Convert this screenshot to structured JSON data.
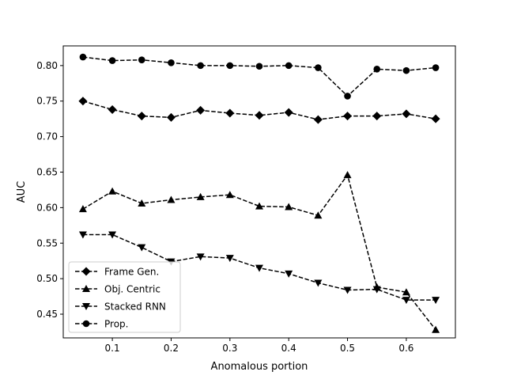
{
  "chart_data": {
    "type": "line",
    "title": "",
    "xlabel": "Anomalous portion",
    "ylabel": "AUC",
    "x": [
      0.05,
      0.1,
      0.15,
      0.2,
      0.25,
      0.3,
      0.35,
      0.4,
      0.45,
      0.5,
      0.55,
      0.6,
      0.65
    ],
    "xlim": [
      0.0165,
      0.6835
    ],
    "ylim": [
      0.4166,
      0.8277
    ],
    "xticks": [
      0.1,
      0.2,
      0.3,
      0.4,
      0.5,
      0.6
    ],
    "xtick_labels": [
      "0.1",
      "0.2",
      "0.3",
      "0.4",
      "0.5",
      "0.6"
    ],
    "yticks": [
      0.45,
      0.5,
      0.55,
      0.6,
      0.65,
      0.7,
      0.75,
      0.8
    ],
    "ytick_labels": [
      "0.45",
      "0.50",
      "0.55",
      "0.60",
      "0.65",
      "0.70",
      "0.75",
      "0.80"
    ],
    "grid": false,
    "legend_position": "lower-left",
    "line_color": "#000000",
    "line_style": "dashed",
    "series": [
      {
        "name": "Frame Gen.",
        "marker": "diamond",
        "values": [
          0.75,
          0.738,
          0.729,
          0.727,
          0.737,
          0.733,
          0.73,
          0.734,
          0.724,
          0.729,
          0.729,
          0.732,
          0.725
        ]
      },
      {
        "name": "Obj. Centric",
        "marker": "triangle-up",
        "values": [
          0.598,
          0.623,
          0.606,
          0.611,
          0.615,
          0.618,
          0.602,
          0.601,
          0.589,
          0.646,
          0.488,
          0.481,
          0.428
        ]
      },
      {
        "name": "Stacked RNN",
        "marker": "triangle-down",
        "values": [
          0.562,
          0.562,
          0.544,
          0.524,
          0.531,
          0.529,
          0.515,
          0.507,
          0.494,
          0.484,
          0.485,
          0.47,
          0.47
        ]
      },
      {
        "name": "Prop.",
        "marker": "circle",
        "values": [
          0.812,
          0.807,
          0.808,
          0.804,
          0.8,
          0.8,
          0.799,
          0.8,
          0.797,
          0.757,
          0.795,
          0.793,
          0.797
        ]
      }
    ]
  }
}
